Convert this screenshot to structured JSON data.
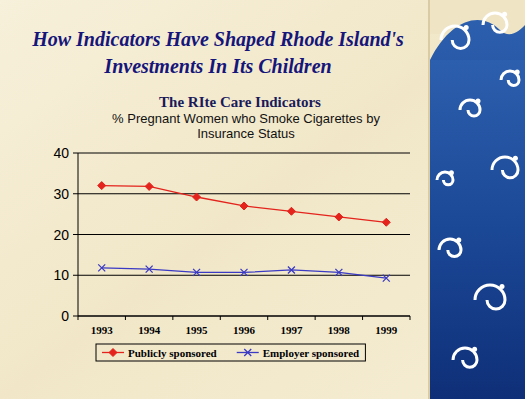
{
  "header": {
    "title": "How Indicators Have Shaped Rhode Island's Investments In Its Children"
  },
  "chart_data": {
    "type": "line",
    "subtitle": "The RIte Care Indicators",
    "title": "% Pregnant Women who Smoke Cigarettes by Insurance Status",
    "categories": [
      "1993",
      "1994",
      "1995",
      "1996",
      "1997",
      "1998",
      "1999"
    ],
    "series": [
      {
        "name": "Publicly sponsored",
        "color": "#e3231c",
        "marker": "diamond",
        "values": [
          32,
          31.8,
          29.2,
          27,
          25.7,
          24.3,
          23
        ]
      },
      {
        "name": "Employer sponsored",
        "color": "#3a3ac4",
        "marker": "x",
        "values": [
          11.8,
          11.5,
          10.7,
          10.7,
          11.3,
          10.7,
          9.3
        ]
      }
    ],
    "ylim": [
      0,
      40
    ],
    "yticks": [
      0,
      10,
      20,
      30,
      40
    ],
    "grid": true,
    "legend": "bottom"
  }
}
